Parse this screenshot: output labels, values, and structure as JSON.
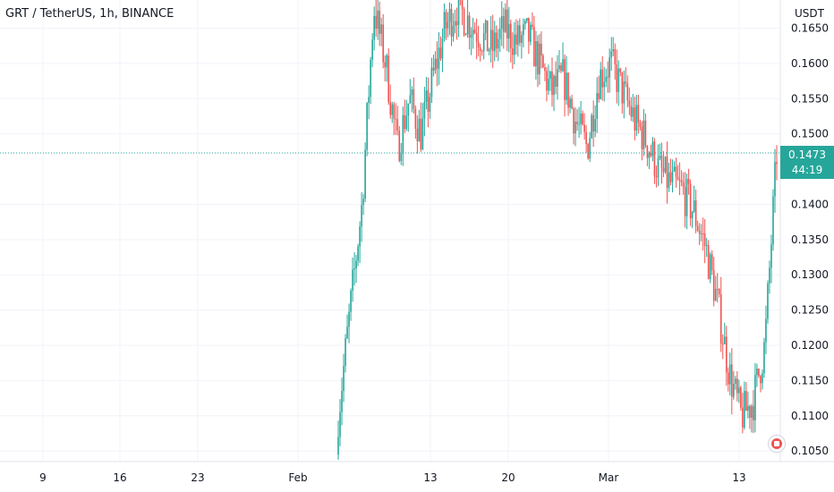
{
  "header": {
    "symbol_title": "GRT / TetherUS, 1h, BINANCE"
  },
  "price_axis": {
    "currency": "USDT",
    "ticks": [
      "0.1650",
      "0.1600",
      "0.1550",
      "0.1500",
      "0.1400",
      "0.1350",
      "0.1300",
      "0.1250",
      "0.1200",
      "0.1150",
      "0.1100",
      "0.1050"
    ]
  },
  "last_price": {
    "value": "0.1473",
    "countdown": "44:19"
  },
  "time_axis": {
    "ticks": [
      "9",
      "16",
      "23",
      "Feb",
      "13",
      "20",
      "Mar",
      "13"
    ]
  },
  "colors": {
    "up": "#26a69a",
    "down": "#ef5350",
    "grid": "#f0f3fa",
    "axis_text": "#131722",
    "price_tag": "#26a69a"
  },
  "chart_data": {
    "type": "candlestick",
    "title": "GRT / TetherUS, 1h, BINANCE",
    "xlabel": "",
    "ylabel": "USDT",
    "ylim": [
      0.1035,
      0.169
    ],
    "grid": true,
    "x": [
      "Feb 5",
      "Feb 6",
      "Feb 7",
      "Feb 9",
      "Feb 10",
      "Feb 11",
      "Feb 12",
      "Feb 13",
      "Feb 14",
      "Feb 15",
      "Feb 16",
      "Feb 17",
      "Feb 18",
      "Feb 19",
      "Feb 20",
      "Feb 21",
      "Feb 22",
      "Feb 23",
      "Feb 24",
      "Feb 25",
      "Feb 26",
      "Feb 27",
      "Feb 28",
      "Mar 1",
      "Mar 2",
      "Mar 3",
      "Mar 4",
      "Mar 5",
      "Mar 6",
      "Mar 7",
      "Mar 8",
      "Mar 9",
      "Mar 10",
      "Mar 11",
      "Mar 12",
      "Mar 13",
      "Mar 14",
      "Mar 15"
    ],
    "series": [
      {
        "values": [
          0.11,
          0.125,
          0.14,
          0.168,
          0.16,
          0.148,
          0.155,
          0.15,
          0.158,
          0.165,
          0.168,
          0.166,
          0.164,
          0.162,
          0.165,
          0.163,
          0.164,
          0.16,
          0.156,
          0.158,
          0.152,
          0.148,
          0.158,
          0.16,
          0.156,
          0.152,
          0.149,
          0.145,
          0.143,
          0.142,
          0.139,
          0.134,
          0.126,
          0.116,
          0.11,
          0.112,
          0.12,
          0.1473
        ]
      }
    ],
    "last_value": 0.1473
  }
}
